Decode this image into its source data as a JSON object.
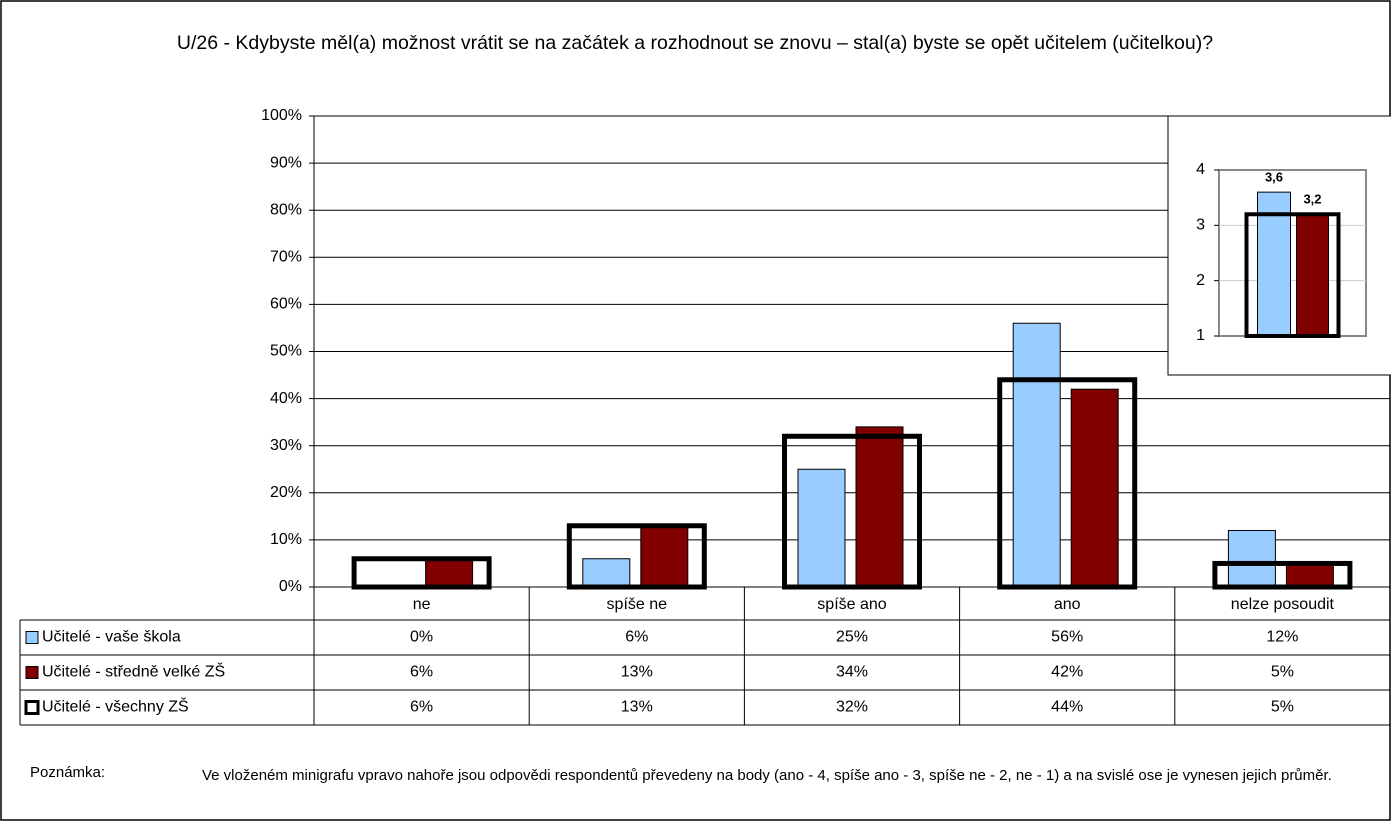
{
  "chart_data": [
    {
      "type": "bar",
      "title": "U/26 - Kdybyste měl(a) možnost vrátit se na začátek a rozhodnout se znovu – stal(a) byste se opět učitelem (učitelkou)?",
      "categories": [
        "ne",
        "spíše ne",
        "spíše ano",
        "ano",
        "nelze posoudit"
      ],
      "series": [
        {
          "name": "Učitelé - vaše škola",
          "color": "#99ccff",
          "values": [
            0,
            6,
            25,
            56,
            12
          ],
          "value_labels": [
            "0%",
            "6%",
            "25%",
            "56%",
            "12%"
          ]
        },
        {
          "name": "Učitelé - středně velké ZŠ",
          "color": "#800000",
          "values": [
            6,
            13,
            34,
            42,
            5
          ],
          "value_labels": [
            "6%",
            "13%",
            "34%",
            "42%",
            "5%"
          ]
        },
        {
          "name": "Učitelé - všechny ZŠ",
          "color": "#000000",
          "outline": true,
          "values": [
            6,
            13,
            32,
            44,
            5
          ],
          "value_labels": [
            "6%",
            "13%",
            "32%",
            "44%",
            "5%"
          ]
        }
      ],
      "ylim": [
        0,
        100
      ],
      "yticks": [
        {
          "value": 0,
          "label": "0%"
        },
        {
          "value": 10,
          "label": "10%"
        },
        {
          "value": 20,
          "label": "20%"
        },
        {
          "value": 30,
          "label": "30%"
        },
        {
          "value": 40,
          "label": "40%"
        },
        {
          "value": 50,
          "label": "50%"
        },
        {
          "value": 60,
          "label": "60%"
        },
        {
          "value": 70,
          "label": "70%"
        },
        {
          "value": 80,
          "label": "80%"
        },
        {
          "value": 90,
          "label": "90%"
        },
        {
          "value": 100,
          "label": "100%"
        }
      ],
      "grid": true
    },
    {
      "type": "bar",
      "series": [
        {
          "color": "#99ccff",
          "values": [
            3.6
          ],
          "value_labels": [
            "3,6"
          ]
        },
        {
          "color": "#800000",
          "values": [
            3.2
          ],
          "value_labels": [
            "3,2"
          ]
        },
        {
          "color": "#000000",
          "outline": true,
          "values": [
            3.2
          ]
        }
      ],
      "ylim": [
        1,
        4
      ],
      "yticks": [
        1,
        2,
        3,
        4
      ],
      "grid": true
    }
  ],
  "note": {
    "label": "Poznámka:",
    "text": "Ve vloženém minigrafu vpravo nahoře jsou odpovědi respondentů převedeny na body (ano - 4, spíše ano - 3, spíše ne - 2, ne - 1) a na svislé ose je vynesen jejich průměr."
  }
}
